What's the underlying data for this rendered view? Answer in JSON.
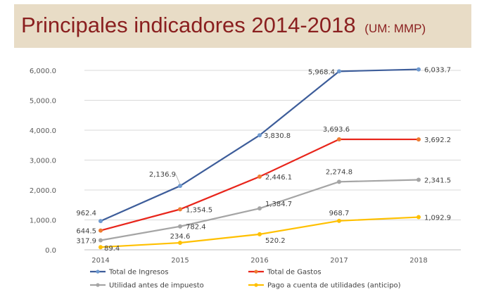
{
  "title": "Principales indicadores 2014-2018",
  "unit_note": "(UM: MMP)",
  "chart_data": {
    "type": "line",
    "x": [
      "2014",
      "2015",
      "2016",
      "2017",
      "2018"
    ],
    "ylim": [
      0,
      6000
    ],
    "yticks": [
      "0.0",
      "1,000.0",
      "2,000.0",
      "3,000.0",
      "4,000.0",
      "5,000.0",
      "6,000.0"
    ],
    "grid": true,
    "legend_position": "bottom",
    "series": [
      {
        "name": "Total de Ingresos",
        "color": "#3d5d9a",
        "marker": "#6f9ad0",
        "values": [
          962.4,
          2136.9,
          3830.8,
          5968.4,
          6033.7
        ],
        "labels": [
          "962.4",
          "2,136.9",
          "3,830.8",
          "5,968.4",
          "6,033.7"
        ]
      },
      {
        "name": "Total de Gastos",
        "color": "#e8251b",
        "marker": "#ed7d31",
        "values": [
          644.5,
          1354.5,
          2446.1,
          3693.6,
          3692.2
        ],
        "labels": [
          "644.5",
          "1,354.5",
          "2,446.1",
          "3,693.6",
          "3,692.2"
        ]
      },
      {
        "name": "Utilidad antes de impuesto",
        "color": "#a5a5a5",
        "marker": "#a5a5a5",
        "values": [
          317.9,
          782.4,
          1384.7,
          2274.8,
          2341.5
        ],
        "labels": [
          "317.9",
          "782.4",
          "1,384.7",
          "2,274.8",
          "2,341.5"
        ]
      },
      {
        "name": "Pago a cuenta de utilidades (anticipo)",
        "color": "#ffc000",
        "marker": "#ffc000",
        "values": [
          89.4,
          234.6,
          520.2,
          968.7,
          1092.9
        ],
        "labels": [
          "89.4",
          "234.6",
          "520.2",
          "968.7",
          "1,092.9"
        ]
      }
    ]
  }
}
